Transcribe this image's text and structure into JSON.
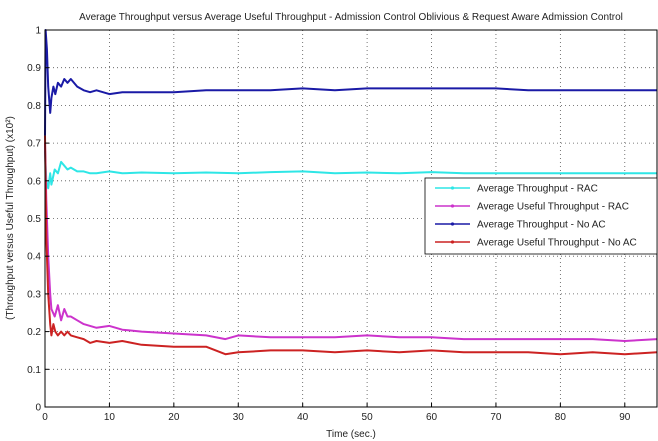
{
  "chart_data": {
    "type": "line",
    "title": "Average Throughput versus Average Useful Throughput - Admission Control Oblivious & Request Aware Admission Control",
    "xlabel": "Time (sec.)",
    "ylabel": "(Throughput versus Useful Throughput) (x10²)",
    "xlim": [
      0,
      95
    ],
    "ylim": [
      0,
      1
    ],
    "xticks": [
      "0",
      "10",
      "20",
      "30",
      "40",
      "50",
      "60",
      "70",
      "80",
      "90"
    ],
    "yticks": [
      "0",
      "0.1",
      "0.2",
      "0.3",
      "0.4",
      "0.5",
      "0.6",
      "0.7",
      "0.8",
      "0.9",
      "1"
    ],
    "grid": true,
    "legend_position": "right",
    "series": [
      {
        "name": "Average Throughput - RAC",
        "color": "#2ee6e6",
        "x": [
          0,
          0.2,
          0.5,
          0.8,
          1.0,
          1.5,
          2.0,
          2.5,
          3.0,
          3.5,
          4.0,
          5.0,
          6.0,
          7.0,
          8.0,
          10.0,
          12.0,
          15.0,
          20.0,
          25.0,
          30.0,
          35.0,
          40.0,
          45.0,
          50.0,
          55.0,
          60.0,
          65.0,
          70.0,
          75.0,
          80.0,
          85.0,
          90.0,
          95.0
        ],
        "y": [
          0.68,
          0.6,
          0.58,
          0.62,
          0.59,
          0.63,
          0.62,
          0.65,
          0.64,
          0.63,
          0.635,
          0.625,
          0.625,
          0.62,
          0.62,
          0.625,
          0.62,
          0.622,
          0.62,
          0.622,
          0.62,
          0.623,
          0.625,
          0.62,
          0.622,
          0.62,
          0.623,
          0.62,
          0.62,
          0.62,
          0.62,
          0.62,
          0.62,
          0.62
        ]
      },
      {
        "name": "Average Useful Throughput - RAC",
        "color": "#cc33cc",
        "x": [
          0,
          0.2,
          0.5,
          0.8,
          1.0,
          1.5,
          2.0,
          2.5,
          3.0,
          3.5,
          4.0,
          5.0,
          6.0,
          8.0,
          10.0,
          12.0,
          15.0,
          20.0,
          25.0,
          28.0,
          30.0,
          35.0,
          40.0,
          45.0,
          50.0,
          55.0,
          60.0,
          65.0,
          70.0,
          75.0,
          80.0,
          85.0,
          90.0,
          95.0
        ],
        "y": [
          0.7,
          0.55,
          0.4,
          0.3,
          0.26,
          0.24,
          0.27,
          0.23,
          0.26,
          0.24,
          0.24,
          0.23,
          0.22,
          0.21,
          0.215,
          0.205,
          0.2,
          0.195,
          0.19,
          0.18,
          0.19,
          0.185,
          0.185,
          0.185,
          0.19,
          0.185,
          0.185,
          0.18,
          0.18,
          0.18,
          0.18,
          0.18,
          0.175,
          0.18
        ]
      },
      {
        "name": "Average Throughput - No AC",
        "color": "#1a1aa6",
        "x": [
          0,
          0.1,
          0.3,
          0.5,
          0.8,
          1.0,
          1.3,
          1.6,
          2.0,
          2.5,
          3.0,
          3.5,
          4.0,
          5.0,
          6.0,
          7.0,
          8.0,
          10.0,
          12.0,
          15.0,
          20.0,
          25.0,
          30.0,
          35.0,
          40.0,
          45.0,
          50.0,
          55.0,
          60.0,
          65.0,
          70.0,
          75.0,
          80.0,
          85.0,
          90.0,
          95.0
        ],
        "y": [
          0.72,
          1.0,
          0.95,
          0.85,
          0.78,
          0.82,
          0.85,
          0.83,
          0.86,
          0.85,
          0.87,
          0.86,
          0.87,
          0.85,
          0.84,
          0.835,
          0.84,
          0.83,
          0.835,
          0.835,
          0.835,
          0.84,
          0.84,
          0.84,
          0.845,
          0.84,
          0.845,
          0.845,
          0.845,
          0.845,
          0.845,
          0.84,
          0.84,
          0.84,
          0.84,
          0.84
        ]
      },
      {
        "name": "Average Useful Throughput - No AC",
        "color": "#cc2222",
        "x": [
          0,
          0.2,
          0.5,
          0.8,
          1.0,
          1.3,
          1.6,
          2.0,
          2.5,
          3.0,
          3.5,
          4.0,
          5.0,
          6.0,
          7.0,
          8.0,
          10.0,
          12.0,
          15.0,
          20.0,
          25.0,
          28.0,
          30.0,
          35.0,
          40.0,
          45.0,
          50.0,
          55.0,
          60.0,
          65.0,
          70.0,
          75.0,
          80.0,
          85.0,
          90.0,
          95.0
        ],
        "y": [
          0.72,
          0.45,
          0.3,
          0.22,
          0.19,
          0.22,
          0.2,
          0.19,
          0.2,
          0.19,
          0.2,
          0.19,
          0.185,
          0.18,
          0.17,
          0.175,
          0.17,
          0.175,
          0.165,
          0.16,
          0.16,
          0.14,
          0.145,
          0.15,
          0.15,
          0.145,
          0.15,
          0.145,
          0.15,
          0.145,
          0.145,
          0.145,
          0.14,
          0.145,
          0.14,
          0.145
        ]
      }
    ]
  }
}
